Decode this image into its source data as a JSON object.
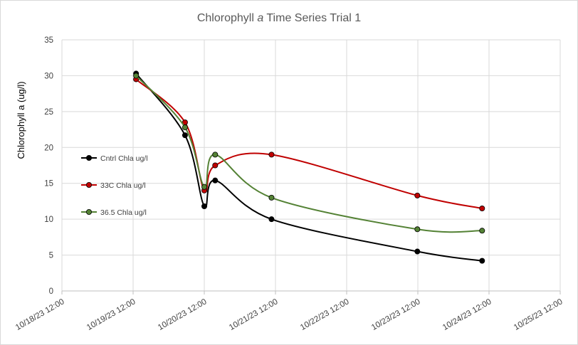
{
  "chart_data": {
    "type": "line",
    "title_prefix": "Chlorophyll ",
    "title_italic": "a",
    "title_suffix": " Time Series Trial 1",
    "ylabel": "Chlorophyll a  (ug/l)",
    "xlabel": "",
    "ylim": [
      0,
      35
    ],
    "yticks": [
      "0",
      "5",
      "10",
      "15",
      "20",
      "25",
      "30",
      "35"
    ],
    "xlim": [
      "10/18/23 12:00",
      "10/25/23 12:00"
    ],
    "xticks": [
      "10/18/23 12:00",
      "10/19/23 12:00",
      "10/20/23 12:00",
      "10/21/23 12:00",
      "10/22/23 12:00",
      "10/23/23 12:00",
      "10/24/23 12:00",
      "10/25/23 12:00"
    ],
    "grid": true,
    "legend_position": "left",
    "series": [
      {
        "name": "Cntrl Chla ug/l",
        "color": "#000000",
        "points": [
          {
            "x": "10/19/23 13:00",
            "y": 30.3
          },
          {
            "x": "10/20/23 05:30",
            "y": 21.7
          },
          {
            "x": "10/20/23 12:00",
            "y": 11.8
          },
          {
            "x": "10/20/23 15:40",
            "y": 15.4
          },
          {
            "x": "10/21/23 10:40",
            "y": 10.0
          },
          {
            "x": "10/23/23 11:50",
            "y": 5.5
          },
          {
            "x": "10/24/23 09:40",
            "y": 4.2
          }
        ]
      },
      {
        "name": "33C Chla ug/l",
        "color": "#c00000",
        "points": [
          {
            "x": "10/19/23 13:00",
            "y": 29.5
          },
          {
            "x": "10/20/23 05:30",
            "y": 23.5
          },
          {
            "x": "10/20/23 12:00",
            "y": 14.0
          },
          {
            "x": "10/20/23 15:40",
            "y": 17.5
          },
          {
            "x": "10/21/23 10:40",
            "y": 19.0
          },
          {
            "x": "10/23/23 11:50",
            "y": 13.3
          },
          {
            "x": "10/24/23 09:40",
            "y": 11.5
          }
        ]
      },
      {
        "name": "36.5 Chla ug/l",
        "color": "#548235",
        "points": [
          {
            "x": "10/19/23 13:00",
            "y": 30.0
          },
          {
            "x": "10/20/23 05:30",
            "y": 22.8
          },
          {
            "x": "10/20/23 12:00",
            "y": 14.5
          },
          {
            "x": "10/20/23 15:40",
            "y": 19.0
          },
          {
            "x": "10/21/23 10:40",
            "y": 13.0
          },
          {
            "x": "10/23/23 11:50",
            "y": 8.6
          },
          {
            "x": "10/24/23 09:40",
            "y": 8.4
          }
        ]
      }
    ]
  }
}
